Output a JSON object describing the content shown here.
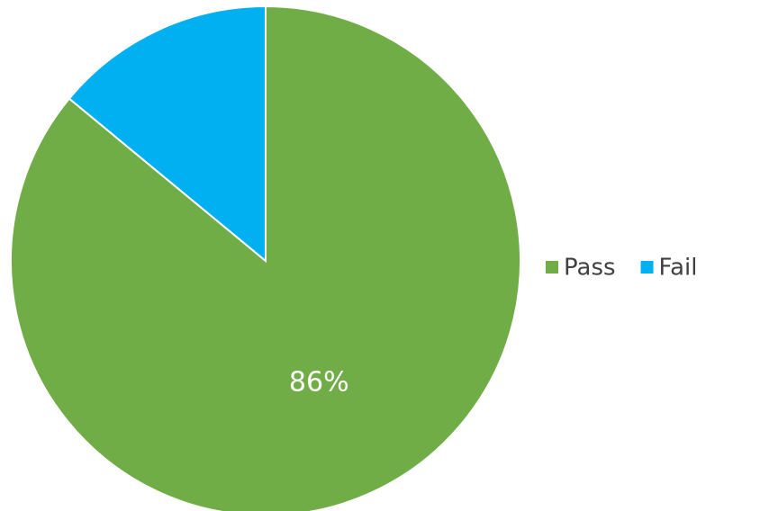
{
  "chart_data": {
    "type": "pie",
    "categories": [
      "Pass",
      "Fail"
    ],
    "values": [
      86,
      14
    ],
    "value_labels": [
      "86%",
      null
    ],
    "colors": [
      "#70ad47",
      "#00b0f0"
    ],
    "legend": "right"
  }
}
